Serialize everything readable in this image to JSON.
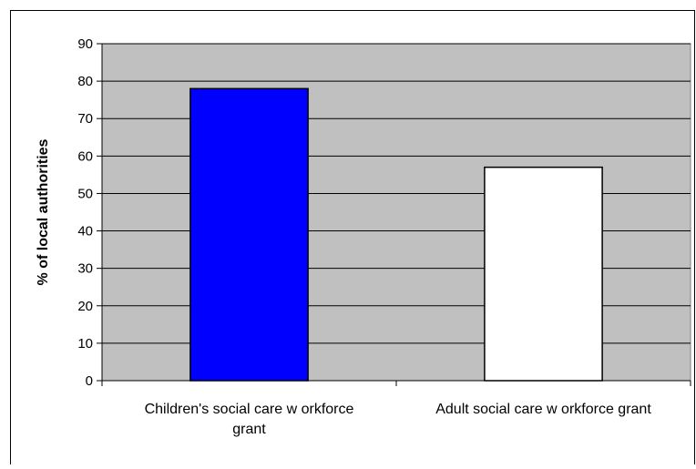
{
  "chart_data": {
    "type": "bar",
    "title": "",
    "xlabel": "",
    "ylabel": "% of local authorities",
    "ylim": [
      0,
      90
    ],
    "yticks": [
      0,
      10,
      20,
      30,
      40,
      50,
      60,
      70,
      80,
      90
    ],
    "grid": true,
    "legend": "none",
    "categories": [
      [
        "Children's social care w orkforce",
        "grant"
      ],
      [
        "Adult social care w orkforce grant"
      ]
    ],
    "values": [
      78,
      57
    ],
    "colors": {
      "plot_background": "#c0c0c0",
      "gridline": "#000000",
      "bars": [
        "#0000ff",
        "#ffffff"
      ],
      "bar_border": "#000000"
    }
  }
}
